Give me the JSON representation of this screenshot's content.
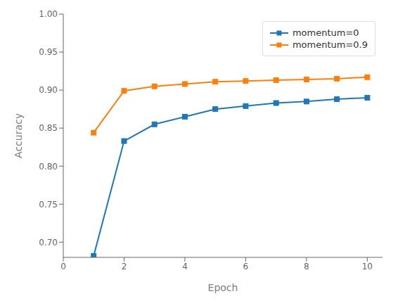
{
  "chart_data": {
    "type": "line",
    "xlabel": "Epoch",
    "ylabel": "Accuracy",
    "x": [
      1,
      2,
      3,
      4,
      5,
      6,
      7,
      8,
      9,
      10
    ],
    "series": [
      {
        "name": "momentum=0",
        "color": "#1f77b4",
        "marker": "square",
        "values": [
          0.682,
          0.833,
          0.855,
          0.865,
          0.875,
          0.879,
          0.883,
          0.885,
          0.888,
          0.89
        ]
      },
      {
        "name": "momentum=0.9",
        "color": "#ff7f0e",
        "marker": "square",
        "values": [
          0.844,
          0.899,
          0.905,
          0.908,
          0.911,
          0.912,
          0.913,
          0.914,
          0.915,
          0.917
        ]
      }
    ],
    "xlim": [
      0,
      10.5
    ],
    "ylim": [
      0.68,
      1.0
    ],
    "xticks": [
      0,
      2,
      4,
      6,
      8,
      10
    ],
    "yticks": [
      {
        "value": 0.7,
        "label": "0.70"
      },
      0.75,
      {
        "value": 0.8,
        "label": "0.80"
      },
      0.85,
      {
        "value": 0.9,
        "label": "0.90"
      },
      0.95,
      {
        "value": 1.0,
        "label": "1.00"
      }
    ],
    "grid": false,
    "legend": "upper right"
  }
}
